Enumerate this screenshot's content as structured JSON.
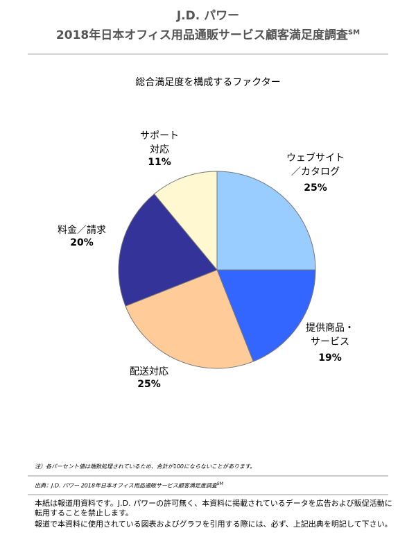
{
  "header": {
    "brand": "J.D. パワー",
    "title": "2018年日本オフィス用品通販サービス顧客満足度調査",
    "title_mark": "SM"
  },
  "chart_data": {
    "type": "pie",
    "title": "総合満足度を構成するファクター",
    "categories": [
      "ウェブサイト\n／カタログ",
      "提供商品・\nサービス",
      "配送対応",
      "料金／請求",
      "サポート\n対応"
    ],
    "values": [
      25,
      19,
      25,
      20,
      11
    ],
    "value_labels": [
      "25%",
      "19%",
      "25%",
      "20%",
      "11%"
    ],
    "colors": [
      "#99ccff",
      "#3366ff",
      "#ffcc99",
      "#333399",
      "#fff8d0"
    ]
  },
  "footer": {
    "note": "注）各パーセント値は端数処理されているため、合計が100にならないことがあります。",
    "source": "出典：J.D. パワー 2018年日本オフィス用品通販サービス顧客満足度調査",
    "source_mark": "SM",
    "disclaimer": [
      "本紙は報道用資料です。J.D. パワーの許可無く、本資料に掲載されているデータを広告および販促活動に転用することを禁止します。",
      "報道で本資料に使用されている図表およびグラフを引用する際には、必ず、上記出典を明記して下さい。"
    ]
  }
}
